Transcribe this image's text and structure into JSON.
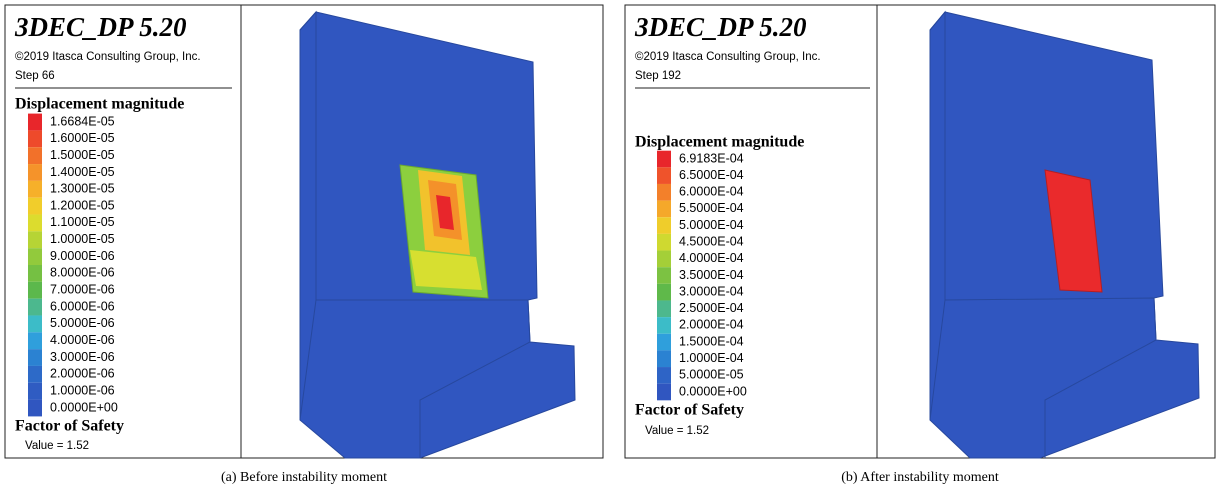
{
  "panels": [
    {
      "app_title": "3DEC_DP 5.20",
      "copyright": "©2019 Itasca Consulting Group, Inc.",
      "step": "Step 66",
      "legend_title": "Displacement magnitude",
      "legend": [
        {
          "label": "1.6684E-05",
          "color": "#e8262b"
        },
        {
          "label": "1.6000E-05",
          "color": "#ee4a2b"
        },
        {
          "label": "1.5000E-05",
          "color": "#f2712a"
        },
        {
          "label": "1.4000E-05",
          "color": "#f5932a"
        },
        {
          "label": "1.3000E-05",
          "color": "#f6b02a"
        },
        {
          "label": "1.2000E-05",
          "color": "#f1cd2b"
        },
        {
          "label": "1.1000E-05",
          "color": "#dcdc2e"
        },
        {
          "label": "1.0000E-05",
          "color": "#b6d435"
        },
        {
          "label": "9.0000E-06",
          "color": "#92ca3c"
        },
        {
          "label": "8.0000E-06",
          "color": "#75c043"
        },
        {
          "label": "7.0000E-06",
          "color": "#5cb84c"
        },
        {
          "label": "6.0000E-06",
          "color": "#4cb88e"
        },
        {
          "label": "5.0000E-06",
          "color": "#3cbcc8"
        },
        {
          "label": "4.0000E-06",
          "color": "#2f9fdc"
        },
        {
          "label": "3.0000E-06",
          "color": "#2b82d2"
        },
        {
          "label": "2.0000E-06",
          "color": "#2d6ac8"
        },
        {
          "label": "1.0000E-06",
          "color": "#2f5cc2"
        },
        {
          "label": "0.0000E+00",
          "color": "#3056c0"
        }
      ],
      "fos_title": "Factor of Safety",
      "fos_value": "Value = 1.52",
      "caption": "(a) Before instability moment"
    },
    {
      "app_title": "3DEC_DP 5.20",
      "copyright": "©2019 Itasca Consulting Group, Inc.",
      "step": "Step 192",
      "legend_title": "Displacement magnitude",
      "legend": [
        {
          "label": "6.9183E-04",
          "color": "#e8262b"
        },
        {
          "label": "6.5000E-04",
          "color": "#ef532b"
        },
        {
          "label": "6.0000E-04",
          "color": "#f3802a"
        },
        {
          "label": "5.5000E-04",
          "color": "#f5a82a"
        },
        {
          "label": "5.0000E-04",
          "color": "#efcd2b"
        },
        {
          "label": "4.5000E-04",
          "color": "#cfd930"
        },
        {
          "label": "4.0000E-04",
          "color": "#a4cf38"
        },
        {
          "label": "3.5000E-04",
          "color": "#7cc242"
        },
        {
          "label": "3.0000E-04",
          "color": "#5fb94a"
        },
        {
          "label": "2.5000E-04",
          "color": "#4db88d"
        },
        {
          "label": "2.0000E-04",
          "color": "#3cbcc8"
        },
        {
          "label": "1.5000E-04",
          "color": "#2f9fdc"
        },
        {
          "label": "1.0000E-04",
          "color": "#2b82d2"
        },
        {
          "label": "5.0000E-05",
          "color": "#2e64c6"
        },
        {
          "label": "0.0000E+00",
          "color": "#3056c0"
        }
      ],
      "fos_title": "Factor of Safety",
      "fos_value": "Value = 1.52",
      "caption": "(b) After instability moment"
    }
  ]
}
